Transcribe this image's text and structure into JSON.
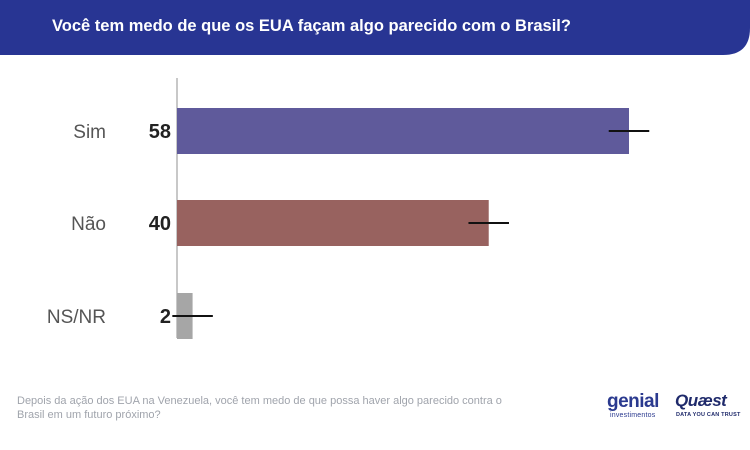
{
  "header": {
    "title": "Você tem medo de que os EUA façam algo parecido com o Brasil?",
    "color": "#283593"
  },
  "chart_data": {
    "type": "bar",
    "orientation": "horizontal",
    "title": "Você tem medo de que os EUA façam algo parecido com o Brasil?",
    "categories": [
      "Sim",
      "Não",
      "NS/NR"
    ],
    "values": [
      58,
      40,
      2
    ],
    "value_labels": [
      "58",
      "40",
      "2"
    ],
    "colors": [
      "#5f5a9b",
      "#98625f",
      "#a6a6a6"
    ],
    "error_margin": 2.6,
    "xlim": [
      0,
      70
    ],
    "xlabel": "",
    "ylabel": "",
    "grid": false,
    "legend": "none"
  },
  "footnote": "Depois da ação dos EUA na Venezuela, você tem medo de que possa haver algo parecido contra o Brasil em um futuro próximo?",
  "logos": {
    "genial": {
      "name": "genial",
      "subtitle": "investimentos"
    },
    "quaest": {
      "name": "Quæst",
      "subtitle": "DATA YOU CAN TRUST"
    }
  }
}
